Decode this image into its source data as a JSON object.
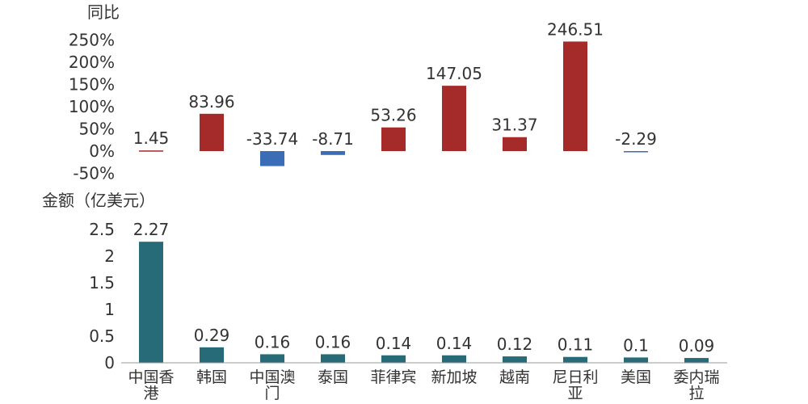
{
  "chart_data": [
    {
      "type": "bar",
      "ylabel": "同比",
      "categories": [
        "中国香港",
        "韩国",
        "中国澳门",
        "泰国",
        "菲律宾",
        "新加坡",
        "越南",
        "尼日利亚",
        "美国",
        "委内瑞拉"
      ],
      "values": [
        1.45,
        83.96,
        -33.74,
        -8.71,
        53.26,
        147.05,
        31.37,
        246.51,
        -2.29,
        null
      ],
      "value_labels": [
        "1.45",
        "83.96",
        "-33.74",
        "-8.71",
        "53.26",
        "147.05",
        "31.37",
        "246.51",
        "-2.29",
        ""
      ],
      "ylim": [
        -50,
        250
      ],
      "yticks": [
        "250%",
        "200%",
        "150%",
        "100%",
        "50%",
        "0%",
        "-50%"
      ],
      "colors": {
        "positive": "#a52a2a",
        "negative": "#3a6db5"
      }
    },
    {
      "type": "bar",
      "ylabel": "金额（亿美元）",
      "categories": [
        "中国香港",
        "韩国",
        "中国澳门",
        "泰国",
        "菲律宾",
        "新加坡",
        "越南",
        "尼日利亚",
        "美国",
        "委内瑞拉"
      ],
      "category_lines": [
        [
          "中国香",
          "港"
        ],
        [
          "韩国"
        ],
        [
          "中国澳",
          "门"
        ],
        [
          "泰国"
        ],
        [
          "菲律宾"
        ],
        [
          "新加坡"
        ],
        [
          "越南"
        ],
        [
          "尼日利",
          "亚"
        ],
        [
          "美国"
        ],
        [
          "委内瑞",
          "拉"
        ]
      ],
      "values": [
        2.27,
        0.29,
        0.16,
        0.16,
        0.14,
        0.14,
        0.12,
        0.11,
        0.1,
        0.09
      ],
      "value_labels": [
        "2.27",
        "0.29",
        "0.16",
        "0.16",
        "0.14",
        "0.14",
        "0.12",
        "0.11",
        "0.1",
        "0.09"
      ],
      "ylim": [
        0,
        2.5
      ],
      "yticks": [
        "2.5",
        "2",
        "1.5",
        "1",
        "0.5",
        "0"
      ],
      "colors": {
        "bar": "#276a78",
        "axis": "#999999"
      }
    }
  ]
}
